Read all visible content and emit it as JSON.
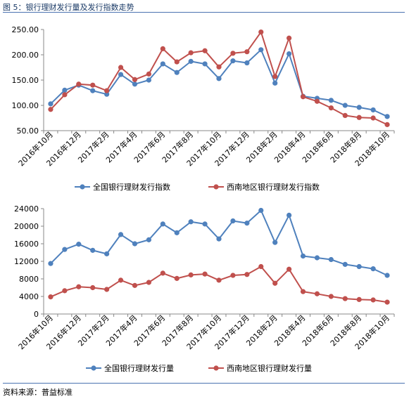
{
  "figure_title": "图 5：银行理财发行量及发行指数走势",
  "source_text": "资料来源：普益标准",
  "colors": {
    "national": "#4f81bd",
    "southwest": "#c0504d",
    "axis": "#888888"
  },
  "chart_data": [
    {
      "type": "line",
      "categories": [
        "2016年10月",
        "2016年11月",
        "2016年12月",
        "2017年1月",
        "2017年2月",
        "2017年3月",
        "2017年4月",
        "2017年5月",
        "2017年6月",
        "2017年7月",
        "2017年8月",
        "2017年9月",
        "2017年10月",
        "2017年11月",
        "2017年12月",
        "2018年1月",
        "2018年2月",
        "2018年3月",
        "2018年4月",
        "2018年5月",
        "2018年6月",
        "2018年7月",
        "2018年8月",
        "2018年9月",
        "2018年10月"
      ],
      "tick_labels": [
        "2016年10月",
        "2016年12月",
        "2017年2月",
        "2017年4月",
        "2017年6月",
        "2017年8月",
        "2017年10月",
        "2017年12月",
        "2018年2月",
        "2018年4月",
        "2018年6月",
        "2018年8月",
        "2018年10月"
      ],
      "ylim": [
        50,
        250
      ],
      "yticks": [
        "50.00",
        "100.00",
        "150.00",
        "200.00",
        "250.00"
      ],
      "series": [
        {
          "name": "全国银行理财发行指数",
          "values": [
            103,
            130,
            140,
            129,
            122,
            161,
            142,
            150,
            182,
            165,
            187,
            182,
            153,
            188,
            184,
            210,
            144,
            202,
            118,
            114,
            110,
            100,
            96,
            91,
            78
          ]
        },
        {
          "name": "西南地区银行理财发行指数",
          "values": [
            92,
            121,
            142,
            140,
            129,
            175,
            151,
            162,
            212,
            186,
            204,
            208,
            176,
            203,
            206,
            245,
            157,
            233,
            117,
            108,
            95,
            80,
            76,
            75,
            62
          ]
        }
      ],
      "legend": "bottom"
    },
    {
      "type": "line",
      "categories": [
        "2016年10月",
        "2016年11月",
        "2016年12月",
        "2017年1月",
        "2017年2月",
        "2017年3月",
        "2017年4月",
        "2017年5月",
        "2017年6月",
        "2017年7月",
        "2017年8月",
        "2017年9月",
        "2017年10月",
        "2017年11月",
        "2017年12月",
        "2018年1月",
        "2018年2月",
        "2018年3月",
        "2018年4月",
        "2018年5月",
        "2018年6月",
        "2018年7月",
        "2018年8月",
        "2018年9月",
        "2018年10月"
      ],
      "tick_labels": [
        "2016年10月",
        "2016年12月",
        "2017年2月",
        "2017年4月",
        "2017年6月",
        "2017年8月",
        "2017年10月",
        "2017年12月",
        "2018年2月",
        "2018年4月",
        "2018年6月",
        "2018年8月",
        "2018年10月"
      ],
      "ylim": [
        0,
        24000
      ],
      "yticks": [
        "0",
        "4000",
        "8000",
        "12000",
        "16000",
        "20000",
        "24000"
      ],
      "series": [
        {
          "name": "全国银行理财发行量",
          "values": [
            11500,
            14700,
            15900,
            14500,
            13700,
            18100,
            16000,
            16900,
            20500,
            18500,
            21000,
            20500,
            17100,
            21200,
            20700,
            23600,
            16300,
            22500,
            13200,
            12800,
            12400,
            11300,
            10800,
            10300,
            8800
          ]
        },
        {
          "name": "西南地区银行理财发行量",
          "values": [
            3900,
            5300,
            6200,
            6000,
            5600,
            7700,
            6500,
            7200,
            9300,
            8100,
            8900,
            9100,
            7700,
            8800,
            9000,
            10800,
            7000,
            10200,
            5100,
            4600,
            4000,
            3500,
            3300,
            3200,
            2700
          ]
        }
      ],
      "legend": "bottom"
    }
  ]
}
